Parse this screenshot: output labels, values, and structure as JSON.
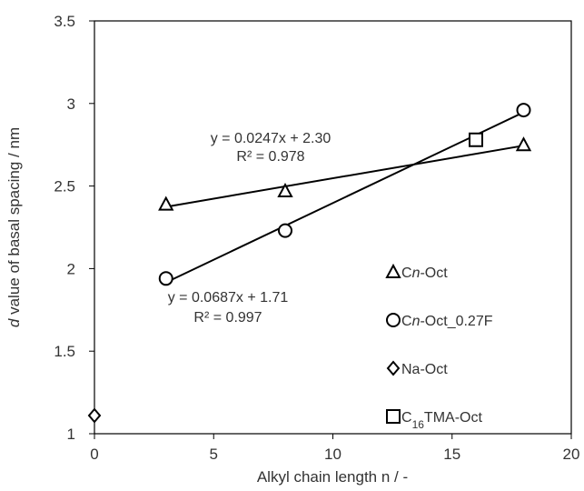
{
  "chart_data": {
    "type": "scatter",
    "xlabel": "Alkyl chain length n / -",
    "ylabel": {
      "italic": "d",
      "rest": " value of basal spacing / nm"
    },
    "xlim": [
      0,
      20
    ],
    "ylim": [
      1,
      3.5
    ],
    "xticks": [
      "0",
      "5",
      "10",
      "15",
      "20"
    ],
    "yticks": [
      "1",
      "1.5",
      "2",
      "2.5",
      "3",
      "3.5"
    ],
    "grid": false,
    "legend_position": "right",
    "series": [
      {
        "marker": "triangle",
        "label_parts": [
          [
            "C",
            ""
          ],
          [
            "n",
            "italic"
          ],
          [
            "-Oct",
            ""
          ]
        ],
        "x": [
          3,
          8,
          18
        ],
        "y": [
          2.39,
          2.47,
          2.75
        ],
        "fit": {
          "slope": 0.0247,
          "intercept": 2.3,
          "x_range": [
            3,
            18
          ]
        }
      },
      {
        "marker": "circle",
        "label_parts": [
          [
            "C",
            ""
          ],
          [
            "n",
            "italic"
          ],
          [
            "-Oct_0.27F",
            ""
          ]
        ],
        "x": [
          3,
          8,
          18
        ],
        "y": [
          1.94,
          2.23,
          2.96
        ],
        "fit": {
          "slope": 0.0687,
          "intercept": 1.71,
          "x_range": [
            3,
            18
          ]
        }
      },
      {
        "marker": "diamond",
        "label_parts": [
          [
            "Na-Oct",
            ""
          ]
        ],
        "x": [
          0
        ],
        "y": [
          1.11
        ]
      },
      {
        "marker": "square",
        "label_parts": [
          [
            "C",
            ""
          ],
          [
            "16",
            "sub"
          ],
          [
            "TMA-Oct",
            ""
          ]
        ],
        "x": [
          16
        ],
        "y": [
          2.78
        ]
      }
    ],
    "annotations": [
      {
        "id": "tri-eq",
        "text": "y = 0.0247x + 2.30"
      },
      {
        "id": "tri-r2",
        "text": "R² = 0.978"
      },
      {
        "id": "circ-eq",
        "text": "y = 0.0687x + 1.71"
      },
      {
        "id": "circ-r2",
        "text": "R² = 0.997"
      }
    ]
  }
}
